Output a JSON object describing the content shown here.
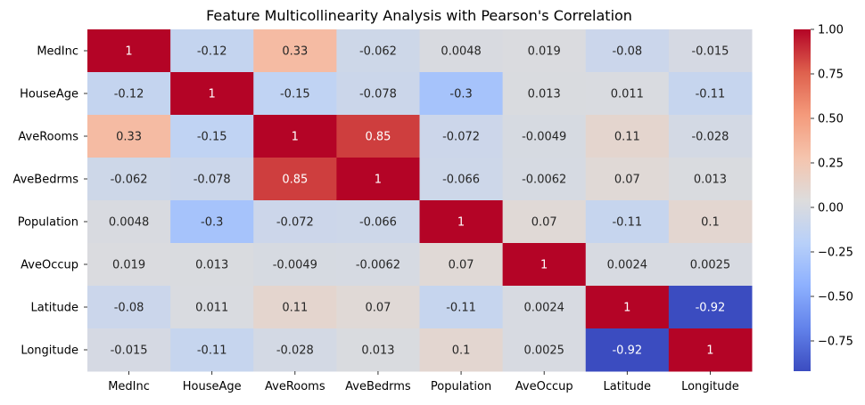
{
  "chart_data": {
    "type": "heatmap",
    "title": "Feature Multicollinearity Analysis with Pearson's Correlation",
    "x_labels": [
      "MedInc",
      "HouseAge",
      "AveRooms",
      "AveBedrms",
      "Population",
      "AveOccup",
      "Latitude",
      "Longitude"
    ],
    "y_labels": [
      "MedInc",
      "HouseAge",
      "AveRooms",
      "AveBedrms",
      "Population",
      "AveOccup",
      "Latitude",
      "Longitude"
    ],
    "values": [
      [
        1,
        -0.12,
        0.33,
        -0.062,
        0.0048,
        0.019,
        -0.08,
        -0.015
      ],
      [
        -0.12,
        1,
        -0.15,
        -0.078,
        -0.3,
        0.013,
        0.011,
        -0.11
      ],
      [
        0.33,
        -0.15,
        1,
        0.85,
        -0.072,
        -0.0049,
        0.11,
        -0.028
      ],
      [
        -0.062,
        -0.078,
        0.85,
        1,
        -0.066,
        -0.0062,
        0.07,
        0.013
      ],
      [
        0.0048,
        -0.3,
        -0.072,
        -0.066,
        1,
        0.07,
        -0.11,
        0.1
      ],
      [
        0.019,
        0.013,
        -0.0049,
        -0.0062,
        0.07,
        1,
        0.0024,
        0.0025
      ],
      [
        -0.08,
        0.011,
        0.11,
        0.07,
        -0.11,
        0.0024,
        1,
        -0.92
      ],
      [
        -0.015,
        -0.11,
        -0.028,
        0.013,
        0.1,
        0.0025,
        -0.92,
        1
      ]
    ],
    "colormap": "coolwarm",
    "colorbar": {
      "vmin": -0.92,
      "vmax": 1.0,
      "ticks": [
        "1.00",
        "0.75",
        "0.50",
        "0.25",
        "0.00",
        "−0.25",
        "−0.50",
        "−0.75"
      ]
    }
  }
}
